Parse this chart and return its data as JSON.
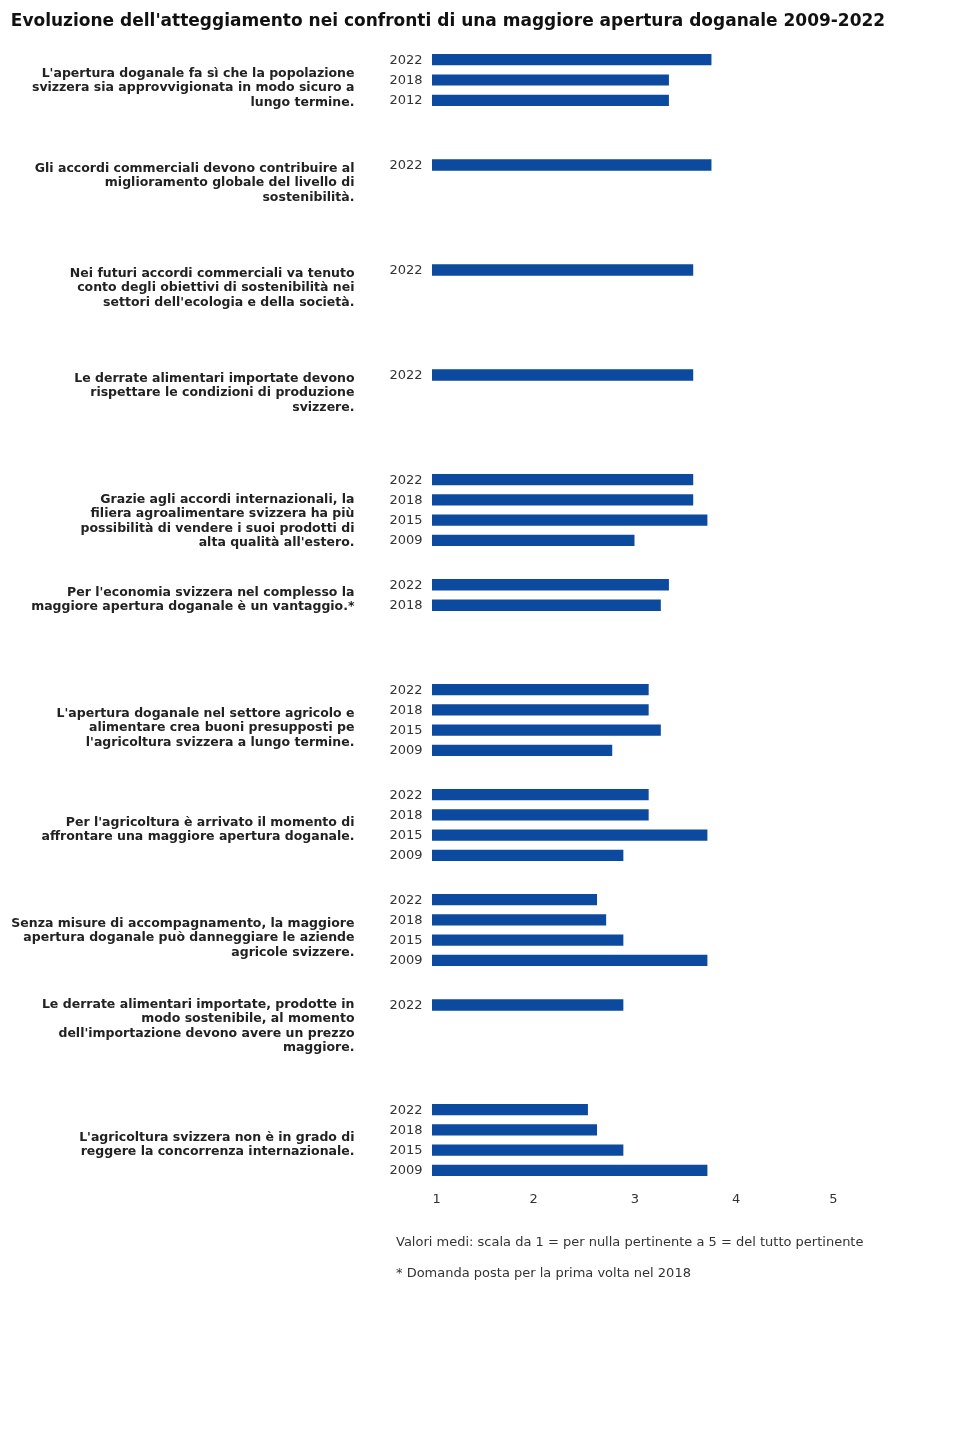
{
  "chart_data": [
    {
      "type": "bar",
      "orientation": "horizontal",
      "title": "Evoluzione dell'atteggiamento nei confronti di una maggiore apertura doganale 2009-2022",
      "ylabel": "L'apertura doganale fa sì che la popolazione svizzera sia approvvigionata in modo sicuro a lungo termine.",
      "categories": [
        "2022",
        "2018",
        "2012"
      ],
      "values": [
        3.76,
        3.34,
        3.34
      ],
      "color": "#0b4a9e",
      "xlim": [
        1,
        5
      ],
      "xticks": [
        1,
        2,
        3,
        4,
        5
      ],
      "tick_labels": "y",
      "grid": false
    },
    {
      "type": "bar",
      "orientation": "horizontal",
      "ylabel": "Gli accordi commerciali devono contribuire al miglioramento globale del livello di sostenibilità.",
      "categories": [
        "2022"
      ],
      "values": [
        3.76
      ],
      "color": "#0b4a9e",
      "xlim": [
        1,
        5
      ],
      "xticks": [
        1,
        2,
        3,
        4,
        5
      ],
      "tick_labels": "y",
      "grid": false
    },
    {
      "type": "bar",
      "orientation": "horizontal",
      "ylabel": "Nei futuri accordi commerciali va tenuto conto degli obiettivi di sostenibilità nei settori dell'ecologia e della società.",
      "categories": [
        "2022"
      ],
      "values": [
        3.58
      ],
      "color": "#0b4a9e",
      "xlim": [
        1,
        5
      ],
      "xticks": [
        1,
        2,
        3,
        4,
        5
      ],
      "tick_labels": "y",
      "grid": false
    },
    {
      "type": "bar",
      "orientation": "horizontal",
      "ylabel": "Le derrate alimentari importate devono rispettare le condizioni di produzione svizzere.",
      "categories": [
        "2022"
      ],
      "values": [
        3.58
      ],
      "color": "#0b4a9e",
      "xlim": [
        1,
        5
      ],
      "xticks": [
        1,
        2,
        3,
        4,
        5
      ],
      "tick_labels": "y",
      "grid": false
    },
    {
      "type": "bar",
      "orientation": "horizontal",
      "ylabel": "Grazie agli accordi internazionali, la filiera agroalimentare svizzera ha più possibilità di vendere i suoi prodotti di alta qualità all'estero.",
      "categories": [
        "2022",
        "2018",
        "2015",
        "2009"
      ],
      "values": [
        3.58,
        3.58,
        3.72,
        3.0
      ],
      "color": "#0b4a9e",
      "xlim": [
        1,
        5
      ],
      "xticks": [
        1,
        2,
        3,
        4,
        5
      ],
      "tick_labels": "y",
      "grid": false
    },
    {
      "type": "bar",
      "orientation": "horizontal",
      "ylabel": "Per l'economia svizzera nel complesso la maggiore apertura doganale è un vantaggio.*",
      "categories": [
        "2022",
        "2018"
      ],
      "values": [
        3.34,
        3.26
      ],
      "color": "#0b4a9e",
      "xlim": [
        1,
        5
      ],
      "xticks": [
        1,
        2,
        3,
        4,
        5
      ],
      "tick_labels": "y",
      "grid": false
    },
    {
      "type": "bar",
      "orientation": "horizontal",
      "ylabel": "L'apertura doganale nel settore agricolo e alimentare crea buoni presupposti pe l'agricoltura svizzera a lungo termine.",
      "categories": [
        "2022",
        "2018",
        "2015",
        "2009"
      ],
      "values": [
        3.14,
        3.14,
        3.26,
        2.78
      ],
      "color": "#0b4a9e",
      "xlim": [
        1,
        5
      ],
      "xticks": [
        1,
        2,
        3,
        4,
        5
      ],
      "tick_labels": "y",
      "grid": false
    },
    {
      "type": "bar",
      "orientation": "horizontal",
      "ylabel": "Per l'agricoltura è arrivato il momento di affrontare una maggiore apertura doganale.",
      "categories": [
        "2022",
        "2018",
        "2015",
        "2009"
      ],
      "values": [
        3.14,
        3.14,
        3.72,
        2.89
      ],
      "color": "#0b4a9e",
      "xlim": [
        1,
        5
      ],
      "xticks": [
        1,
        2,
        3,
        4,
        5
      ],
      "tick_labels": "y",
      "grid": false
    },
    {
      "type": "bar",
      "orientation": "horizontal",
      "ylabel": "Senza misure di accompagnamento, la maggiore apertura doganale può danneggiare le aziende agricole svizzere.",
      "categories": [
        "2022",
        "2018",
        "2015",
        "2009"
      ],
      "values": [
        2.63,
        2.72,
        2.89,
        3.72
      ],
      "color": "#0b4a9e",
      "xlim": [
        1,
        5
      ],
      "xticks": [
        1,
        2,
        3,
        4,
        5
      ],
      "tick_labels": "y",
      "grid": false
    },
    {
      "type": "bar",
      "orientation": "horizontal",
      "ylabel": "Le derrate alimentari importate, prodotte in modo sostenibile, al momento dell'importazione devono avere un prezzo maggiore.",
      "categories": [
        "2022"
      ],
      "values": [
        2.89
      ],
      "color": "#0b4a9e",
      "xlim": [
        1,
        5
      ],
      "xticks": [
        1,
        2,
        3,
        4,
        5
      ],
      "tick_labels": "y",
      "grid": false
    },
    {
      "type": "bar",
      "orientation": "horizontal",
      "ylabel": "L'agricoltura svizzera non è in grado di reggere la concorrenza internazionale.",
      "categories": [
        "2022",
        "2018",
        "2015",
        "2009"
      ],
      "values": [
        2.54,
        2.63,
        2.89,
        3.72
      ],
      "color": "#0b4a9e",
      "xlim": [
        1,
        5
      ],
      "xticks": [
        1,
        2,
        3,
        4,
        5
      ],
      "grid": false,
      "annotations": [
        "Valori medi: scala da 1 = per nulla pertinente a 5 = del tutto pertinente",
        "* Domanda posta per la prima volta nel 2018"
      ]
    }
  ]
}
